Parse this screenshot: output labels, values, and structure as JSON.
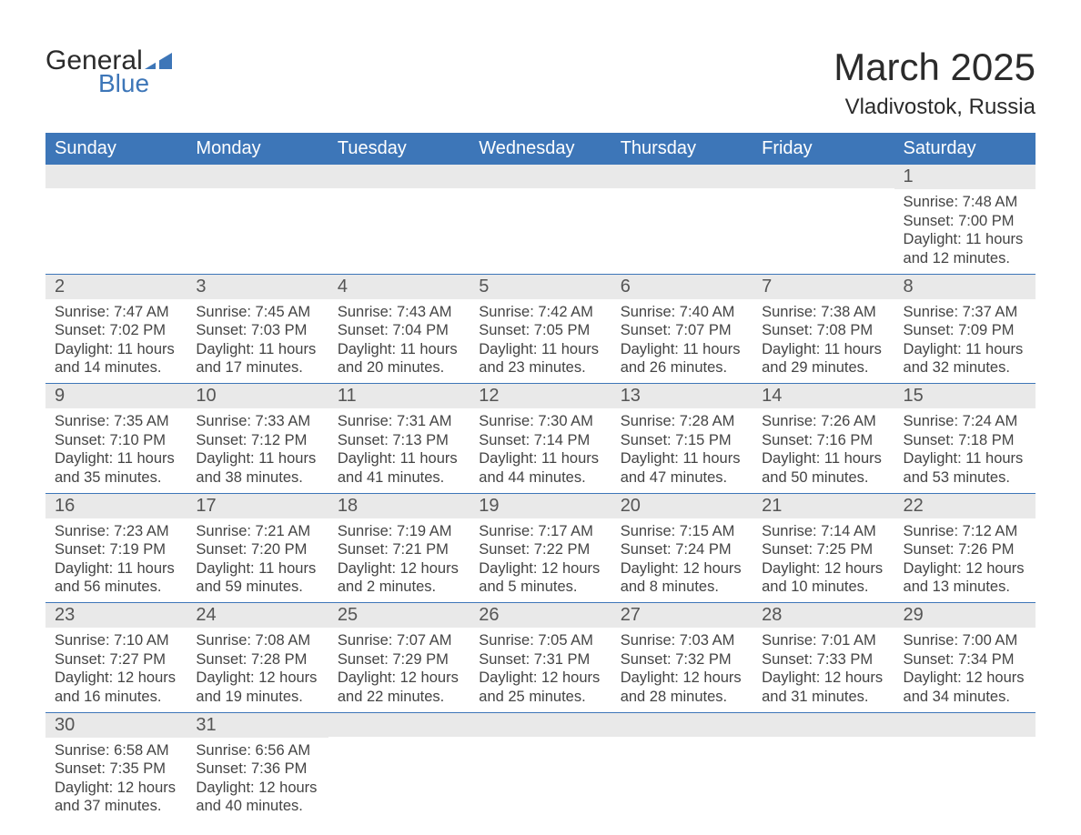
{
  "logo": {
    "text_main": "General",
    "text_sub": "Blue",
    "color_main": "#2b2b2b",
    "color_sub": "#3d76b8"
  },
  "title": "March 2025",
  "location": "Vladivostok, Russia",
  "colors": {
    "header_bg": "#3d76b8",
    "header_text": "#ffffff",
    "daynum_bg": "#e9e9e9",
    "daynum_text": "#555555",
    "body_text": "#444444",
    "divider": "#3d76b8",
    "page_bg": "#ffffff"
  },
  "fonts": {
    "title_size_pt": 32,
    "location_size_pt": 18,
    "dayhead_size_pt": 15,
    "daynum_size_pt": 15,
    "body_size_pt": 12
  },
  "day_headers": [
    "Sunday",
    "Monday",
    "Tuesday",
    "Wednesday",
    "Thursday",
    "Friday",
    "Saturday"
  ],
  "labels": {
    "sunrise": "Sunrise:",
    "sunset": "Sunset:",
    "daylight": "Daylight:"
  },
  "weeks": [
    [
      null,
      null,
      null,
      null,
      null,
      null,
      {
        "n": "1",
        "sunrise": "7:48 AM",
        "sunset": "7:00 PM",
        "daylight": "11 hours and 12 minutes."
      }
    ],
    [
      {
        "n": "2",
        "sunrise": "7:47 AM",
        "sunset": "7:02 PM",
        "daylight": "11 hours and 14 minutes."
      },
      {
        "n": "3",
        "sunrise": "7:45 AM",
        "sunset": "7:03 PM",
        "daylight": "11 hours and 17 minutes."
      },
      {
        "n": "4",
        "sunrise": "7:43 AM",
        "sunset": "7:04 PM",
        "daylight": "11 hours and 20 minutes."
      },
      {
        "n": "5",
        "sunrise": "7:42 AM",
        "sunset": "7:05 PM",
        "daylight": "11 hours and 23 minutes."
      },
      {
        "n": "6",
        "sunrise": "7:40 AM",
        "sunset": "7:07 PM",
        "daylight": "11 hours and 26 minutes."
      },
      {
        "n": "7",
        "sunrise": "7:38 AM",
        "sunset": "7:08 PM",
        "daylight": "11 hours and 29 minutes."
      },
      {
        "n": "8",
        "sunrise": "7:37 AM",
        "sunset": "7:09 PM",
        "daylight": "11 hours and 32 minutes."
      }
    ],
    [
      {
        "n": "9",
        "sunrise": "7:35 AM",
        "sunset": "7:10 PM",
        "daylight": "11 hours and 35 minutes."
      },
      {
        "n": "10",
        "sunrise": "7:33 AM",
        "sunset": "7:12 PM",
        "daylight": "11 hours and 38 minutes."
      },
      {
        "n": "11",
        "sunrise": "7:31 AM",
        "sunset": "7:13 PM",
        "daylight": "11 hours and 41 minutes."
      },
      {
        "n": "12",
        "sunrise": "7:30 AM",
        "sunset": "7:14 PM",
        "daylight": "11 hours and 44 minutes."
      },
      {
        "n": "13",
        "sunrise": "7:28 AM",
        "sunset": "7:15 PM",
        "daylight": "11 hours and 47 minutes."
      },
      {
        "n": "14",
        "sunrise": "7:26 AM",
        "sunset": "7:16 PM",
        "daylight": "11 hours and 50 minutes."
      },
      {
        "n": "15",
        "sunrise": "7:24 AM",
        "sunset": "7:18 PM",
        "daylight": "11 hours and 53 minutes."
      }
    ],
    [
      {
        "n": "16",
        "sunrise": "7:23 AM",
        "sunset": "7:19 PM",
        "daylight": "11 hours and 56 minutes."
      },
      {
        "n": "17",
        "sunrise": "7:21 AM",
        "sunset": "7:20 PM",
        "daylight": "11 hours and 59 minutes."
      },
      {
        "n": "18",
        "sunrise": "7:19 AM",
        "sunset": "7:21 PM",
        "daylight": "12 hours and 2 minutes."
      },
      {
        "n": "19",
        "sunrise": "7:17 AM",
        "sunset": "7:22 PM",
        "daylight": "12 hours and 5 minutes."
      },
      {
        "n": "20",
        "sunrise": "7:15 AM",
        "sunset": "7:24 PM",
        "daylight": "12 hours and 8 minutes."
      },
      {
        "n": "21",
        "sunrise": "7:14 AM",
        "sunset": "7:25 PM",
        "daylight": "12 hours and 10 minutes."
      },
      {
        "n": "22",
        "sunrise": "7:12 AM",
        "sunset": "7:26 PM",
        "daylight": "12 hours and 13 minutes."
      }
    ],
    [
      {
        "n": "23",
        "sunrise": "7:10 AM",
        "sunset": "7:27 PM",
        "daylight": "12 hours and 16 minutes."
      },
      {
        "n": "24",
        "sunrise": "7:08 AM",
        "sunset": "7:28 PM",
        "daylight": "12 hours and 19 minutes."
      },
      {
        "n": "25",
        "sunrise": "7:07 AM",
        "sunset": "7:29 PM",
        "daylight": "12 hours and 22 minutes."
      },
      {
        "n": "26",
        "sunrise": "7:05 AM",
        "sunset": "7:31 PM",
        "daylight": "12 hours and 25 minutes."
      },
      {
        "n": "27",
        "sunrise": "7:03 AM",
        "sunset": "7:32 PM",
        "daylight": "12 hours and 28 minutes."
      },
      {
        "n": "28",
        "sunrise": "7:01 AM",
        "sunset": "7:33 PM",
        "daylight": "12 hours and 31 minutes."
      },
      {
        "n": "29",
        "sunrise": "7:00 AM",
        "sunset": "7:34 PM",
        "daylight": "12 hours and 34 minutes."
      }
    ],
    [
      {
        "n": "30",
        "sunrise": "6:58 AM",
        "sunset": "7:35 PM",
        "daylight": "12 hours and 37 minutes."
      },
      {
        "n": "31",
        "sunrise": "6:56 AM",
        "sunset": "7:36 PM",
        "daylight": "12 hours and 40 minutes."
      },
      null,
      null,
      null,
      null,
      null
    ]
  ]
}
